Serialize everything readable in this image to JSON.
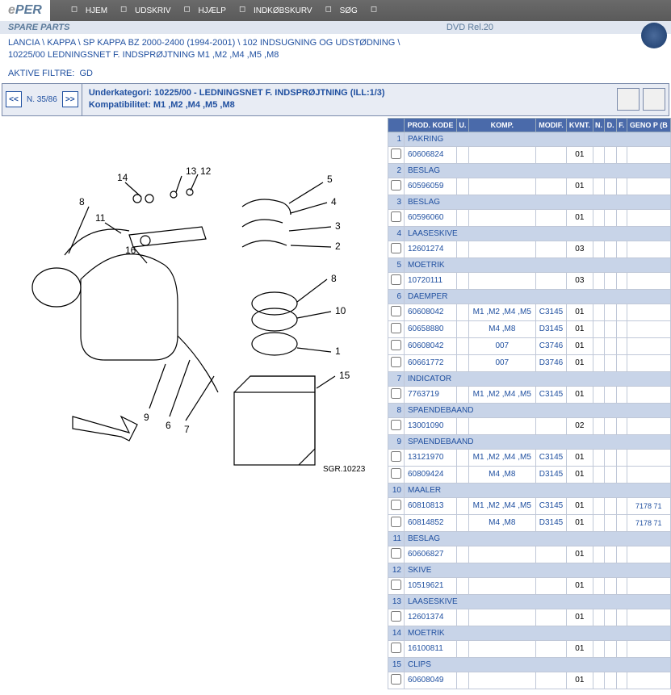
{
  "topbar": {
    "logo_prefix": "e",
    "logo_text": "PER",
    "nav": [
      {
        "icon": "home",
        "label": "HJEM"
      },
      {
        "icon": "print",
        "label": "UDSKRIV"
      },
      {
        "icon": "help",
        "label": "HJÆLP"
      },
      {
        "icon": "cart",
        "label": "INDKØBSKURV"
      },
      {
        "icon": "search",
        "label": "SØG"
      },
      {
        "icon": "info",
        "label": ""
      }
    ]
  },
  "subbar": {
    "title": "SPARE PARTS",
    "release": "DVD Rel.20"
  },
  "breadcrumb": {
    "line1": "LANCIA \\ KAPPA \\ SP KAPPA BZ 2000-2400 (1994-2001) \\ 102 INDSUGNING OG UDSTØDNING \\",
    "line2": "10225/00 LEDNINGSNET F. INDSPRØJTNING M1 ,M2 ,M4 ,M5 ,M8"
  },
  "filters": {
    "label": "AKTIVE FILTRE:",
    "value": "GD"
  },
  "navrow": {
    "prev": "<<",
    "next": ">>",
    "count": "N. 35/86",
    "sub_label": "Underkategori:",
    "sub_value": "10225/00 - LEDNINGSNET F. INDSPRØJTNING (ILL:1/3)",
    "compat_label": "Kompatibilitet:",
    "compat_value": "M1 ,M2 ,M4 ,M5 ,M8"
  },
  "table": {
    "headers": [
      "",
      "PROD. KODE",
      "U.",
      "KOMP.",
      "MODIF.",
      "KVNT.",
      "N.",
      "D.",
      "F.",
      "GENO P (B"
    ],
    "groups": [
      {
        "num": "1",
        "name": "PAKRING",
        "rows": [
          {
            "code": "60606824",
            "komp": "",
            "modif": "",
            "kvnt": "01"
          }
        ]
      },
      {
        "num": "2",
        "name": "BESLAG",
        "rows": [
          {
            "code": "60596059",
            "komp": "",
            "modif": "",
            "kvnt": "01"
          }
        ]
      },
      {
        "num": "3",
        "name": "BESLAG",
        "rows": [
          {
            "code": "60596060",
            "komp": "",
            "modif": "",
            "kvnt": "01"
          }
        ]
      },
      {
        "num": "4",
        "name": "LAASESKIVE",
        "rows": [
          {
            "code": "12601274",
            "komp": "",
            "modif": "",
            "kvnt": "03"
          }
        ]
      },
      {
        "num": "5",
        "name": "MOETRIK",
        "rows": [
          {
            "code": "10720111",
            "komp": "",
            "modif": "",
            "kvnt": "03"
          }
        ]
      },
      {
        "num": "6",
        "name": "DAEMPER",
        "rows": [
          {
            "code": "60608042",
            "komp": "M1 ,M2 ,M4 ,M5",
            "modif": "C3145",
            "kvnt": "01"
          },
          {
            "code": "60658880",
            "komp": "M4 ,M8",
            "modif": "D3145",
            "kvnt": "01"
          },
          {
            "code": "60608042",
            "komp": "007",
            "modif": "C3746",
            "kvnt": "01"
          },
          {
            "code": "60661772",
            "komp": "007",
            "modif": "D3746",
            "kvnt": "01"
          }
        ]
      },
      {
        "num": "7",
        "name": "INDICATOR",
        "rows": [
          {
            "code": "7763719",
            "komp": "M1 ,M2 ,M4 ,M5",
            "modif": "C3145",
            "kvnt": "01"
          }
        ]
      },
      {
        "num": "8",
        "name": "SPAENDEBAAND",
        "rows": [
          {
            "code": "13001090",
            "komp": "",
            "modif": "",
            "kvnt": "02"
          }
        ]
      },
      {
        "num": "9",
        "name": "SPAENDEBAAND",
        "rows": [
          {
            "code": "13121970",
            "komp": "M1 ,M2 ,M4 ,M5",
            "modif": "C3145",
            "kvnt": "01"
          },
          {
            "code": "60809424",
            "komp": "M4 ,M8",
            "modif": "D3145",
            "kvnt": "01"
          }
        ]
      },
      {
        "num": "10",
        "name": "MAALER",
        "rows": [
          {
            "code": "60810813",
            "komp": "M1 ,M2 ,M4 ,M5",
            "modif": "C3145",
            "kvnt": "01",
            "geno": "7178 71"
          },
          {
            "code": "60814852",
            "komp": "M4 ,M8",
            "modif": "D3145",
            "kvnt": "01",
            "geno": "7178 71"
          }
        ]
      },
      {
        "num": "11",
        "name": "BESLAG",
        "rows": [
          {
            "code": "60606827",
            "komp": "",
            "modif": "",
            "kvnt": "01"
          }
        ]
      },
      {
        "num": "12",
        "name": "SKIVE",
        "rows": [
          {
            "code": "10519621",
            "komp": "",
            "modif": "",
            "kvnt": "01"
          }
        ]
      },
      {
        "num": "13",
        "name": "LAASESKIVE",
        "rows": [
          {
            "code": "12601374",
            "komp": "",
            "modif": "",
            "kvnt": "01"
          }
        ]
      },
      {
        "num": "14",
        "name": "MOETRIK",
        "rows": [
          {
            "code": "16100811",
            "komp": "",
            "modif": "",
            "kvnt": "01"
          }
        ]
      },
      {
        "num": "15",
        "name": "CLIPS",
        "rows": [
          {
            "code": "60608049",
            "komp": "",
            "modif": "",
            "kvnt": "01"
          }
        ]
      }
    ]
  },
  "diagram": {
    "callouts": [
      "1",
      "2",
      "3",
      "4",
      "5",
      "6",
      "7",
      "8",
      "9",
      "10",
      "11",
      "12",
      "13",
      "14",
      "15",
      "16"
    ],
    "ref": "SGR.10223"
  }
}
